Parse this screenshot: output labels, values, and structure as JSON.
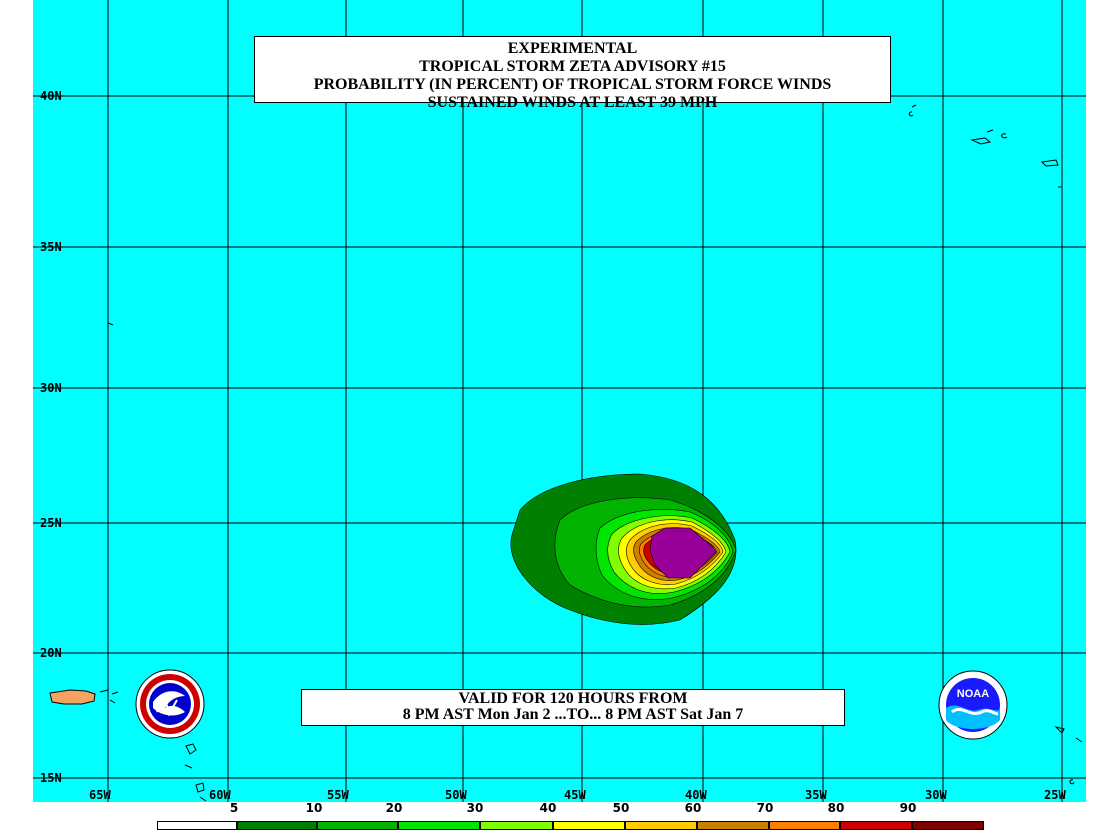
{
  "title": {
    "line1": "EXPERIMENTAL",
    "line2": "TROPICAL STORM ZETA ADVISORY #15",
    "line3": "PROBABILITY (IN PERCENT) OF TROPICAL STORM FORCE WINDS",
    "line4": "SUSTAINED WINDS AT LEAST 39 MPH"
  },
  "valid": {
    "line1": "VALID FOR 120 HOURS FROM",
    "line2": "8 PM AST Mon Jan 2 ...TO... 8 PM AST Sat Jan 7"
  },
  "lat_labels": [
    "40N",
    "35N",
    "30N",
    "25N",
    "20N",
    "15N"
  ],
  "lon_labels": [
    "65W",
    "60W",
    "55W",
    "50W",
    "45W",
    "40W",
    "35W",
    "30W",
    "25W"
  ],
  "legend": {
    "labels": [
      "5",
      "10",
      "20",
      "30",
      "40",
      "50",
      "60",
      "70",
      "80",
      "90"
    ],
    "colors": [
      "#ffffff",
      "#008000",
      "#00b400",
      "#00e600",
      "#80ff00",
      "#ffff00",
      "#ffcc00",
      "#cc8000",
      "#ff8000",
      "#cc0000",
      "#800000",
      "#990099"
    ]
  },
  "colors": {
    "ocean": "#00ffff",
    "grid": "#000000",
    "land": "#f4a460"
  },
  "icons": {
    "left_logo": "nws-logo-icon",
    "right_logo": "noaa-logo-icon"
  },
  "right_logo_text": "NOAA"
}
